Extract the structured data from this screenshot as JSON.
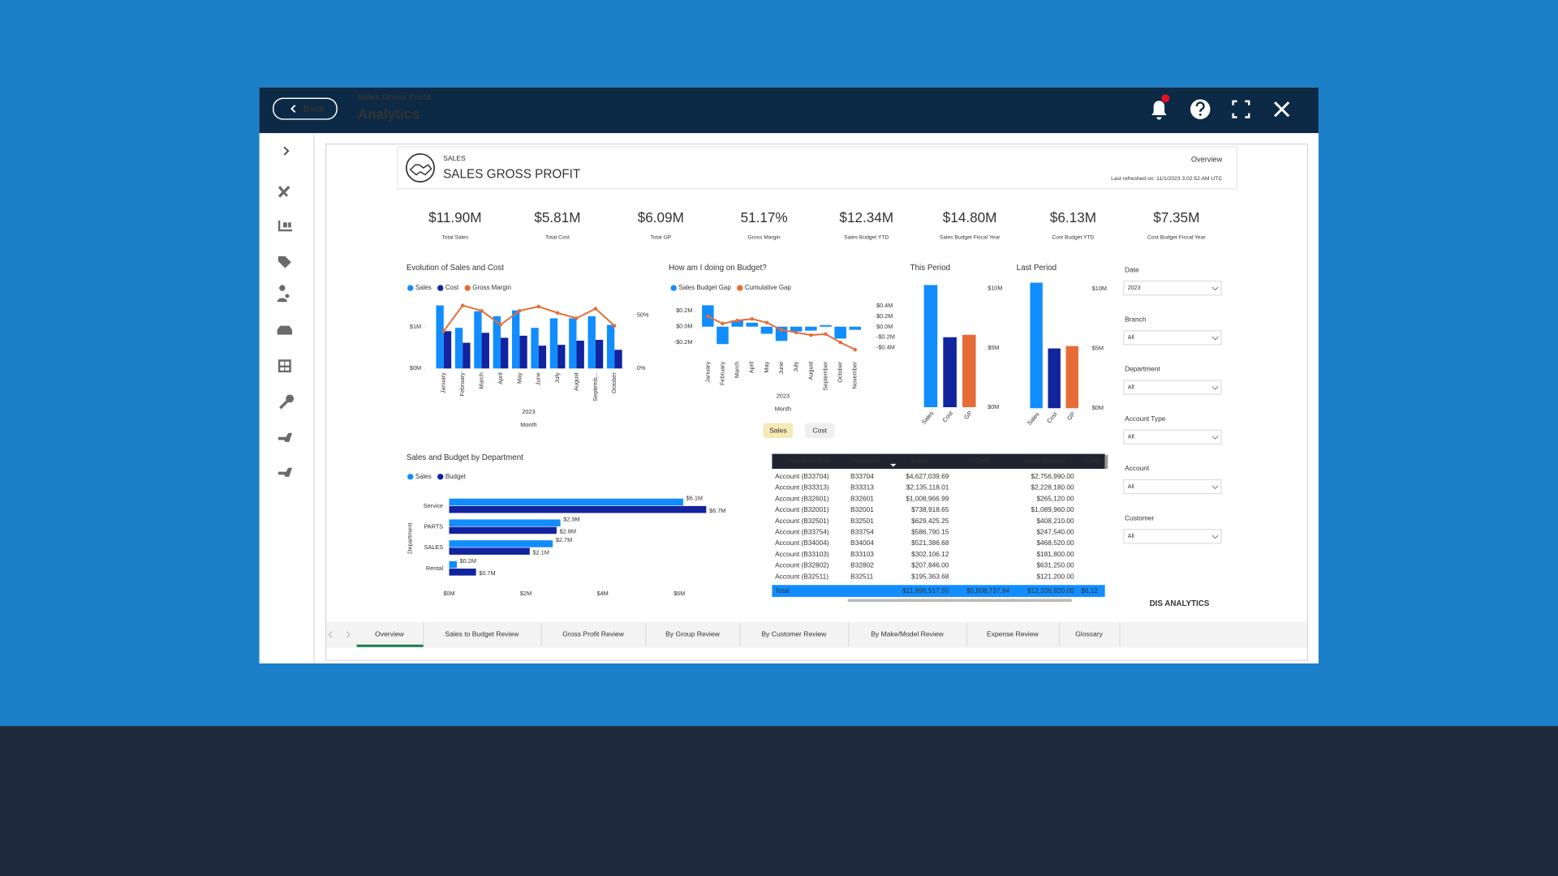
{
  "header": {
    "back": "Back",
    "subtitle": "Sales Gross Profit",
    "title": "Analytics"
  },
  "report": {
    "section": "SALES",
    "title": "SALES GROSS PROFIT",
    "page": "Overview",
    "refreshed": "Last refreshed on: 11/1/2023 3:02:52 AM UTC",
    "footer": "DIS ANALYTICS"
  },
  "kpis": [
    {
      "value": "$11.90M",
      "label": "Total Sales",
      "color": "#d13438"
    },
    {
      "value": "$5.81M",
      "label": "Total Cost",
      "color": "#1aab40"
    },
    {
      "value": "$6.09M",
      "label": "Total GP",
      "color": "#d13438"
    },
    {
      "value": "51.17%",
      "label": "Gross Margin",
      "color": "#1aab40"
    },
    {
      "value": "$12.34M",
      "label": "Sales Budget YTD",
      "color": "#252423"
    },
    {
      "value": "$14.80M",
      "label": "Sales Budget Fiscal Year",
      "color": "#252423"
    },
    {
      "value": "$6.13M",
      "label": "Cost Budget YTD",
      "color": "#252423"
    },
    {
      "value": "$7.35M",
      "label": "Cost Budget Fiscal Year",
      "color": "#252423"
    }
  ],
  "chart_data": [
    {
      "type": "combo",
      "title": "Evolution of Sales and Cost",
      "categories": [
        "January",
        "February",
        "March",
        "April",
        "May",
        "June",
        "July",
        "August",
        "Septemb...",
        "October"
      ],
      "series": [
        {
          "name": "Sales",
          "color": "#118dff",
          "values": [
            1520000,
            980000,
            1380000,
            1260000,
            1400000,
            980000,
            1210000,
            1210000,
            1260000,
            1050000
          ]
        },
        {
          "name": "Cost",
          "color": "#12239e",
          "values": [
            900000,
            620000,
            860000,
            740000,
            790000,
            550000,
            570000,
            670000,
            690000,
            450000
          ]
        },
        {
          "name": "Gross Margin",
          "color": "#e66c37",
          "axis": "y2",
          "values": [
            35,
            59,
            54,
            41,
            54,
            58,
            52,
            47,
            56,
            40
          ]
        }
      ],
      "ylim": [
        0,
        1700000
      ],
      "yticks": [
        {
          "value": 0,
          "label": "$0M"
        },
        {
          "value": 1000000,
          "label": "$1M"
        }
      ],
      "y2lim": [
        0,
        66
      ],
      "y2ticks": [
        {
          "value": 0,
          "label": "0%"
        },
        {
          "value": 50,
          "label": "50%"
        }
      ],
      "x_group": "2023",
      "xlabel": "Month"
    },
    {
      "type": "combo",
      "title": "How am I doing on Budget?",
      "categories": [
        "January",
        "February",
        "March",
        "April",
        "May",
        "June",
        "July",
        "August",
        "September",
        "October",
        "November"
      ],
      "series": [
        {
          "name": "Sales Budget Gap",
          "color": "#118dff",
          "values": [
            270000,
            -220000,
            80000,
            50000,
            -90000,
            -180000,
            -60000,
            -50000,
            20000,
            -150000,
            -40000
          ]
        },
        {
          "name": "Cumulative Gap",
          "color": "#e66c37",
          "axis": "y2",
          "values": [
            200000,
            60000,
            120000,
            150000,
            80000,
            -60000,
            -110000,
            -160000,
            -140000,
            -300000,
            -440000
          ]
        }
      ],
      "ylim": [
        -390000,
        325000
      ],
      "yticks": [
        {
          "value": 200000,
          "label": "$0.2M"
        },
        {
          "value": 0,
          "label": "$0.0M"
        },
        {
          "value": -200000,
          "label": "-$0.2M"
        }
      ],
      "y2lim": [
        -590000,
        495000
      ],
      "y2ticks": [
        {
          "value": 400000,
          "label": "$0.4M"
        },
        {
          "value": 200000,
          "label": "$0.2M"
        },
        {
          "value": 0,
          "label": "$0.0M"
        },
        {
          "value": -200000,
          "label": "-$0.2M"
        },
        {
          "value": -400000,
          "label": "-$0.4M"
        }
      ],
      "x_group": "2023",
      "xlabel": "Month"
    },
    {
      "type": "bar",
      "title": "This Period",
      "categories": [
        "Sales",
        "Cost",
        "GP"
      ],
      "colors": [
        "#118dff",
        "#12239e",
        "#e66c37"
      ],
      "values": [
        10300000,
        5900000,
        6100000
      ],
      "ylim": [
        0,
        10800000
      ],
      "yticks": [
        {
          "value": 0,
          "label": "$0M"
        },
        {
          "value": 5000000,
          "label": "$5M"
        },
        {
          "value": 10000000,
          "label": "$10M"
        }
      ]
    },
    {
      "type": "bar",
      "title": "Last Period",
      "categories": [
        "Sales",
        "Cost",
        "GP"
      ],
      "colors": [
        "#118dff",
        "#12239e",
        "#e66c37"
      ],
      "values": [
        10500000,
        5000000,
        5200000
      ],
      "ylim": [
        0,
        10800000
      ],
      "yticks": [
        {
          "value": 0,
          "label": "$0M"
        },
        {
          "value": 5000000,
          "label": "$5M"
        },
        {
          "value": 10000000,
          "label": "$10M"
        }
      ]
    },
    {
      "type": "hbar",
      "title": "Sales and Budget by Department",
      "ylabel": "Department",
      "categories": [
        "Service",
        "PARTS",
        "SALES",
        "Rental"
      ],
      "series": [
        {
          "name": "Sales",
          "color": "#118dff",
          "values": [
            6100000,
            2900000,
            2700000,
            200000
          ],
          "value_labels": [
            "$6.1M",
            "$2.9M",
            "$2.7M",
            "$0.2M"
          ]
        },
        {
          "name": "Budget",
          "color": "#12239e",
          "values": [
            6700000,
            2800000,
            2100000,
            700000
          ],
          "value_labels": [
            "$6.7M",
            "$2.8M",
            "$2.1M",
            "$0.7M"
          ]
        }
      ],
      "xlim": [
        0,
        8000000
      ],
      "xticks": [
        {
          "value": 0,
          "label": "$0M"
        },
        {
          "value": 2000000,
          "label": "$2M"
        },
        {
          "value": 4000000,
          "label": "$4M"
        },
        {
          "value": 6000000,
          "label": "$6M"
        }
      ]
    }
  ],
  "toggle": [
    "Sales",
    "Cost"
  ],
  "table": {
    "columns": [
      "Account Title",
      "Account",
      "Sales",
      "Cost",
      "Sales Budget",
      "Cost"
    ],
    "rows": [
      [
        "Account (B33704)",
        "B33704",
        "$4,627,039.69",
        "$2,756,990.00"
      ],
      [
        "Account (B33313)",
        "B33313",
        "$2,135,118.01",
        "$2,228,180.00"
      ],
      [
        "Account (B32601)",
        "B32601",
        "$1,008,966.99",
        "$265,120.00"
      ],
      [
        "Account (B32001)",
        "B32001",
        "$738,918.65",
        "$1,089,960.00"
      ],
      [
        "Account (B32501)",
        "B32501",
        "$629,425.25",
        "$408,210.00"
      ],
      [
        "Account (B33754)",
        "B33754",
        "$586,790.15",
        "$247,540.00"
      ],
      [
        "Account (B34004)",
        "B34004",
        "$521,386.68",
        "$468,520.00"
      ],
      [
        "Account (B33103)",
        "B33103",
        "$302,106.12",
        "$181,800.00"
      ],
      [
        "Account (B32802)",
        "B32802",
        "$207,846.00",
        "$631,250.00"
      ],
      [
        "Account (B32511)",
        "B32511",
        "$195,363.68",
        "$121,200.00"
      ]
    ],
    "total": [
      "Total",
      "$11,896,517.55",
      "$5,808,737.94",
      "$12,336,920.00",
      "$6,12"
    ]
  },
  "filters": [
    {
      "label": "Date",
      "value": "2023"
    },
    {
      "label": "Branch",
      "value": "All"
    },
    {
      "label": "Department",
      "value": "All"
    },
    {
      "label": "Account Type",
      "value": "All"
    },
    {
      "label": "Account",
      "value": "All"
    },
    {
      "label": "Customer",
      "value": "All"
    }
  ],
  "tabs": [
    "Overview",
    "Sales to Budget Review",
    "Gross Profit Review",
    "By Group Review",
    "By Customer Review",
    "By Make/Model Review",
    "Expense Review",
    "Glossary"
  ]
}
